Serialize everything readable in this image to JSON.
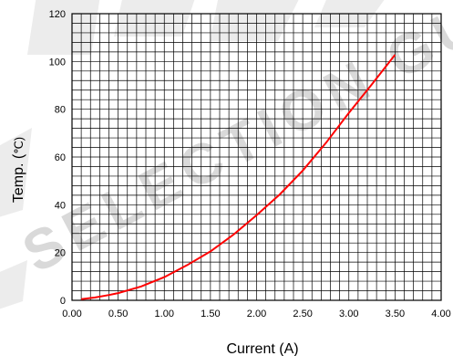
{
  "chart_data": {
    "type": "line",
    "title": "",
    "xlabel": "Current  (A)",
    "ylabel": "Temp.  (",
    "ylabel_unit": "℃)",
    "xlim": [
      0.0,
      4.0
    ],
    "ylim": [
      0,
      120
    ],
    "x_major_step": 0.5,
    "y_major_step": 20,
    "x_minor_step": 0.1,
    "y_minor_step": 4,
    "grid": true,
    "x_tick_labels": [
      "0.00",
      "0.50",
      "1.00",
      "1.50",
      "2.00",
      "2.50",
      "3.00",
      "3.50",
      "4.00"
    ],
    "y_tick_labels": [
      "0",
      "20",
      "40",
      "60",
      "80",
      "100",
      "120"
    ],
    "series": [
      {
        "color": "#ff0000",
        "points": [
          [
            0.1,
            0.5
          ],
          [
            0.25,
            1.2
          ],
          [
            0.4,
            2.2
          ],
          [
            0.5,
            3.0
          ],
          [
            0.75,
            5.8
          ],
          [
            1.0,
            9.7
          ],
          [
            1.25,
            14.8
          ],
          [
            1.5,
            20.5
          ],
          [
            1.75,
            27.5
          ],
          [
            2.0,
            35.6
          ],
          [
            2.25,
            44.3
          ],
          [
            2.5,
            54.3
          ],
          [
            2.75,
            65.8
          ],
          [
            3.0,
            78.5
          ],
          [
            3.25,
            90.5
          ],
          [
            3.5,
            102.8
          ]
        ]
      }
    ],
    "watermark": "SELECTION GUIDE"
  }
}
